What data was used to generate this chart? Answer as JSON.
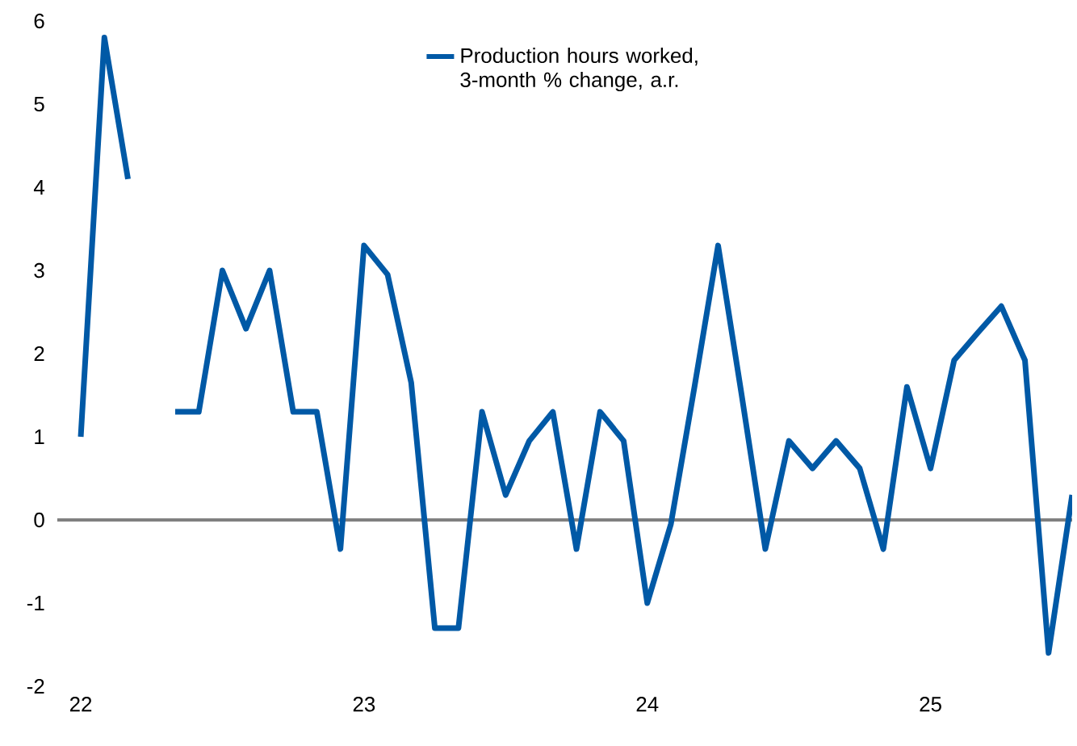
{
  "chart_data": {
    "type": "line",
    "x": [
      "2022-01",
      "2022-02",
      "2022-03",
      "2022-04",
      "2022-05",
      "2022-06",
      "2022-07",
      "2022-08",
      "2022-09",
      "2022-10",
      "2022-11",
      "2022-12",
      "2023-01",
      "2023-02",
      "2023-03",
      "2023-04",
      "2023-05",
      "2023-06",
      "2023-07",
      "2023-08",
      "2023-09",
      "2023-10",
      "2023-11",
      "2023-12",
      "2024-01",
      "2024-02",
      "2024-03",
      "2024-04",
      "2024-05",
      "2024-06",
      "2024-07",
      "2024-08",
      "2024-09",
      "2024-10",
      "2024-11",
      "2024-12",
      "2025-01",
      "2025-02",
      "2025-03",
      "2025-04",
      "2025-05",
      "2025-06",
      "2025-07"
    ],
    "series": [
      {
        "name": "Production hours worked, 3-month % change, a.r.",
        "color": "#0059a6",
        "values": [
          1.0,
          5.8,
          4.1,
          null,
          1.3,
          1.3,
          3.0,
          2.3,
          3.0,
          1.3,
          1.3,
          -0.35,
          3.3,
          2.95,
          1.65,
          -1.3,
          -1.3,
          1.3,
          0.3,
          0.95,
          1.3,
          -0.35,
          1.3,
          0.95,
          -1.0,
          -0.05,
          1.6,
          3.3,
          1.5,
          -0.35,
          0.95,
          0.62,
          0.95,
          0.62,
          -0.35,
          1.6,
          0.62,
          1.92,
          2.25,
          2.57,
          1.92,
          -1.6,
          0.3
        ]
      }
    ],
    "xlim": [
      "2021-12",
      "2025-07"
    ],
    "xticks": [
      {
        "value": "2022-01",
        "label": "22"
      },
      {
        "value": "2023-01",
        "label": "23"
      },
      {
        "value": "2024-01",
        "label": "24"
      },
      {
        "value": "2025-01",
        "label": "25"
      }
    ],
    "ylim": [
      -2,
      6
    ],
    "yticks": [
      -2,
      -1,
      0,
      1,
      2,
      3,
      4,
      5,
      6
    ],
    "ref_lines": [
      {
        "axis": "y",
        "value": 0,
        "color": "#808080"
      }
    ],
    "legend": "top"
  }
}
